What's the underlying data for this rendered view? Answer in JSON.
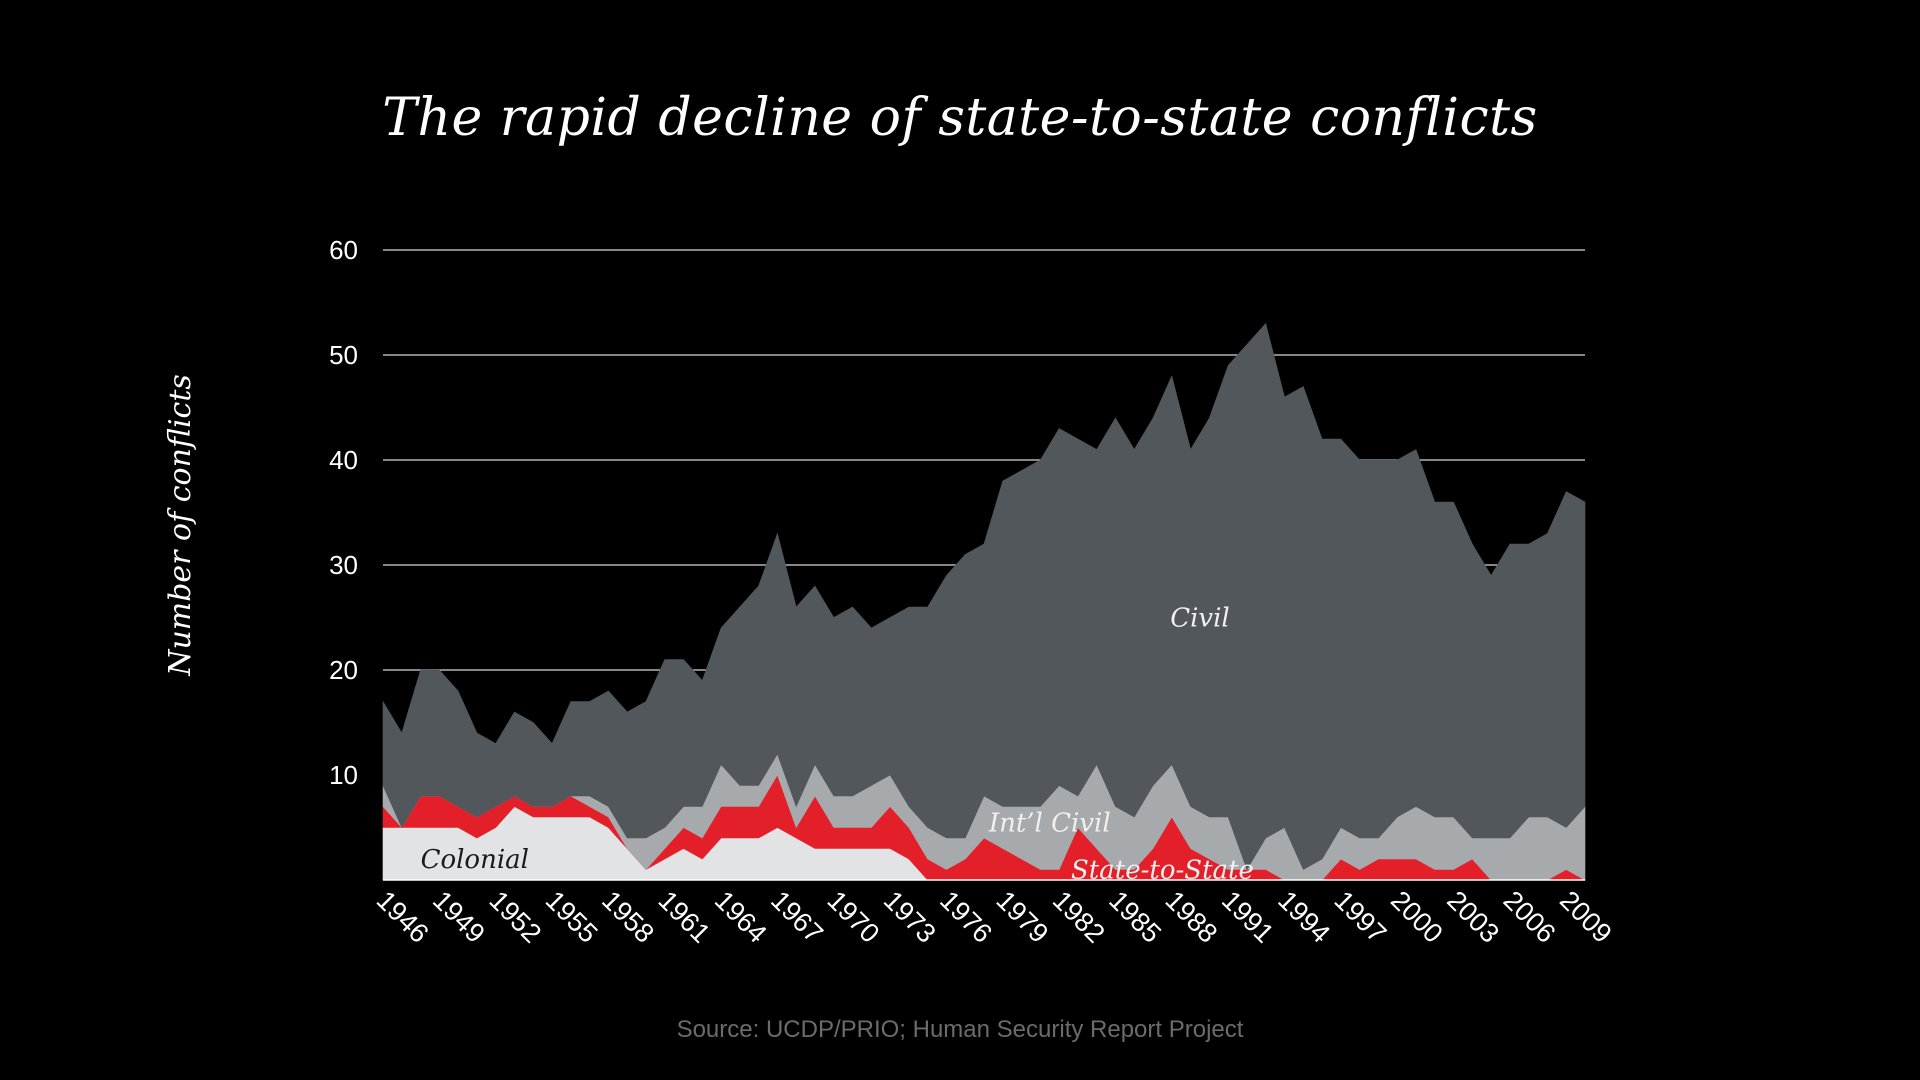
{
  "chart_data": {
    "type": "area",
    "stacked": true,
    "title": "The rapid decline of state-to-state conflicts",
    "xlabel": "",
    "ylabel": "Number of conflicts",
    "source": "Source: UCDP/PRIO; Human Security Report Project",
    "ylim": [
      0,
      60
    ],
    "y_ticks": [
      10,
      20,
      30,
      40,
      50,
      60
    ],
    "x_tick_labels": [
      "1946",
      "1949",
      "1952",
      "1955",
      "1958",
      "1961",
      "1964",
      "1967",
      "1970",
      "1973",
      "1976",
      "1979",
      "1982",
      "1985",
      "1988",
      "1991",
      "1994",
      "1997",
      "2000",
      "2003",
      "2006",
      "2009"
    ],
    "grid": true,
    "x": [
      1946,
      1947,
      1948,
      1949,
      1950,
      1951,
      1952,
      1953,
      1954,
      1955,
      1956,
      1957,
      1958,
      1959,
      1960,
      1961,
      1962,
      1963,
      1964,
      1965,
      1966,
      1967,
      1968,
      1969,
      1970,
      1971,
      1972,
      1973,
      1974,
      1975,
      1976,
      1977,
      1978,
      1979,
      1980,
      1981,
      1982,
      1983,
      1984,
      1985,
      1986,
      1987,
      1988,
      1989,
      1990,
      1991,
      1992,
      1993,
      1994,
      1995,
      1996,
      1997,
      1998,
      1999,
      2000,
      2001,
      2002,
      2003,
      2004,
      2005,
      2006,
      2007,
      2008,
      2009,
      2010
    ],
    "series": [
      {
        "name": "Colonial",
        "label": "Colonial",
        "color": "#e2e3e5",
        "label_color": "#1a1a1a",
        "values": [
          5,
          5,
          5,
          5,
          5,
          4,
          5,
          7,
          6,
          6,
          6,
          6,
          5,
          3,
          1,
          2,
          3,
          2,
          4,
          4,
          4,
          5,
          4,
          3,
          3,
          3,
          3,
          3,
          2,
          0,
          0,
          0,
          0,
          0,
          0,
          0,
          0,
          0,
          0,
          0,
          0,
          0,
          0,
          0,
          0,
          0,
          0,
          0,
          0,
          0,
          0,
          0,
          0,
          0,
          0,
          0,
          0,
          0,
          0,
          0,
          0,
          0,
          0,
          0,
          0
        ]
      },
      {
        "name": "State-to-State",
        "label": "State-to-State",
        "color": "#e3202a",
        "label_color": "#f0f0f0",
        "values": [
          2,
          0,
          3,
          3,
          2,
          2,
          2,
          1,
          1,
          1,
          2,
          1,
          1,
          0,
          0,
          1,
          2,
          2,
          3,
          3,
          3,
          5,
          1,
          5,
          2,
          2,
          2,
          4,
          3,
          2,
          1,
          2,
          4,
          3,
          2,
          1,
          1,
          5,
          3,
          1,
          1,
          3,
          6,
          3,
          2,
          1,
          1,
          1,
          0,
          0,
          0,
          2,
          1,
          2,
          2,
          2,
          1,
          1,
          2,
          0,
          0,
          0,
          0,
          1,
          0
        ]
      },
      {
        "name": "Int'l Civil",
        "label": "Int’l Civil",
        "color": "#a7aaac",
        "label_color": "#f0f0f0",
        "values": [
          2,
          0,
          0,
          0,
          0,
          0,
          0,
          0,
          0,
          0,
          0,
          1,
          1,
          1,
          3,
          2,
          2,
          3,
          4,
          2,
          2,
          2,
          2,
          3,
          3,
          3,
          4,
          3,
          2,
          3,
          3,
          2,
          4,
          4,
          5,
          6,
          8,
          3,
          8,
          6,
          5,
          6,
          5,
          4,
          4,
          5,
          0,
          3,
          5,
          1,
          2,
          3,
          3,
          2,
          4,
          5,
          5,
          5,
          2,
          4,
          4,
          6,
          6,
          4,
          7
        ]
      },
      {
        "name": "Civil",
        "label": "Civil",
        "color": "#52575c",
        "label_color": "#f0f0f0",
        "values": [
          8,
          9,
          12,
          12,
          11,
          8,
          6,
          8,
          8,
          6,
          9,
          9,
          11,
          12,
          13,
          16,
          14,
          12,
          13,
          17,
          19,
          21,
          19,
          17,
          17,
          18,
          15,
          15,
          19,
          21,
          25,
          27,
          24,
          31,
          32,
          33,
          34,
          34,
          30,
          37,
          35,
          35,
          37,
          34,
          38,
          43,
          50,
          49,
          41,
          46,
          40,
          37,
          36,
          36,
          34,
          34,
          30,
          30,
          28,
          25,
          28,
          26,
          27,
          32,
          29
        ]
      }
    ],
    "annotations": [
      {
        "text": "Colonial",
        "x": 1948,
        "y": 2
      },
      {
        "text": "State-to-State",
        "x": 1987.5,
        "y": 1
      },
      {
        "text": "Int’l Civil",
        "x": 1981.5,
        "y": 5.5
      },
      {
        "text": "Civil",
        "x": 1989.5,
        "y": 25
      }
    ]
  }
}
